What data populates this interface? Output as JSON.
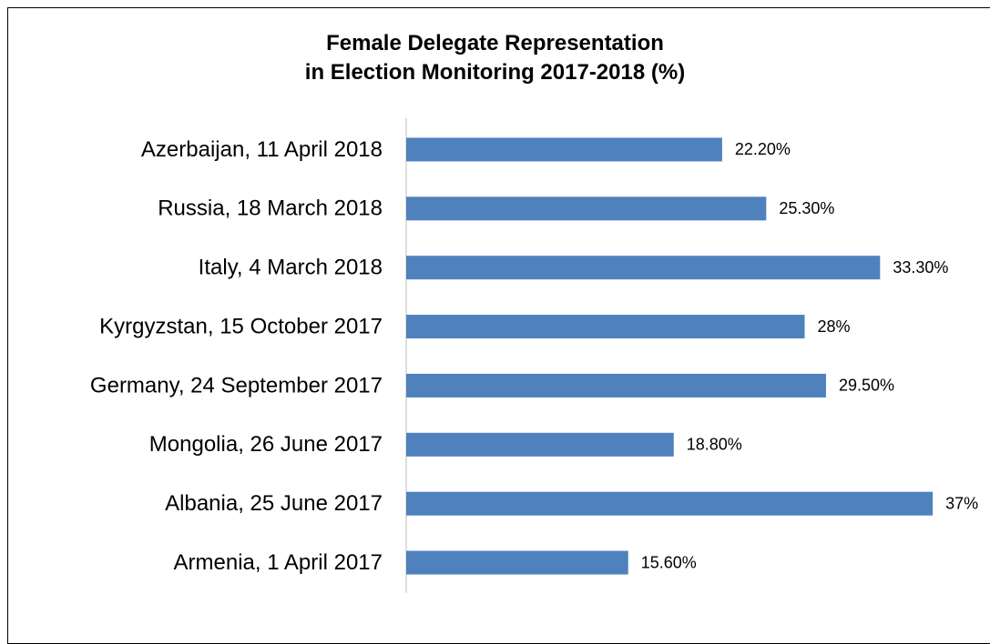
{
  "chart_data": {
    "type": "bar",
    "orientation": "horizontal",
    "title": "Female Delegate Representation\nin Election Monitoring 2017-2018 (%)",
    "categories": [
      "Azerbaijan, 11 April 2018",
      "Russia, 18 March 2018",
      "Italy, 4 March 2018",
      "Kyrgyzstan, 15 October 2017",
      "Germany, 24 September 2017",
      "Mongolia, 26 June 2017",
      "Albania, 25 June 2017",
      "Armenia, 1 April 2017"
    ],
    "values": [
      22.2,
      25.3,
      33.3,
      28,
      29.5,
      18.8,
      37,
      15.6
    ],
    "value_labels": [
      "22.20%",
      "25.30%",
      "33.30%",
      "28%",
      "29.50%",
      "18.80%",
      "37%",
      "15.60%"
    ],
    "color": "#4f81bd",
    "xlim": [
      0,
      40
    ]
  }
}
